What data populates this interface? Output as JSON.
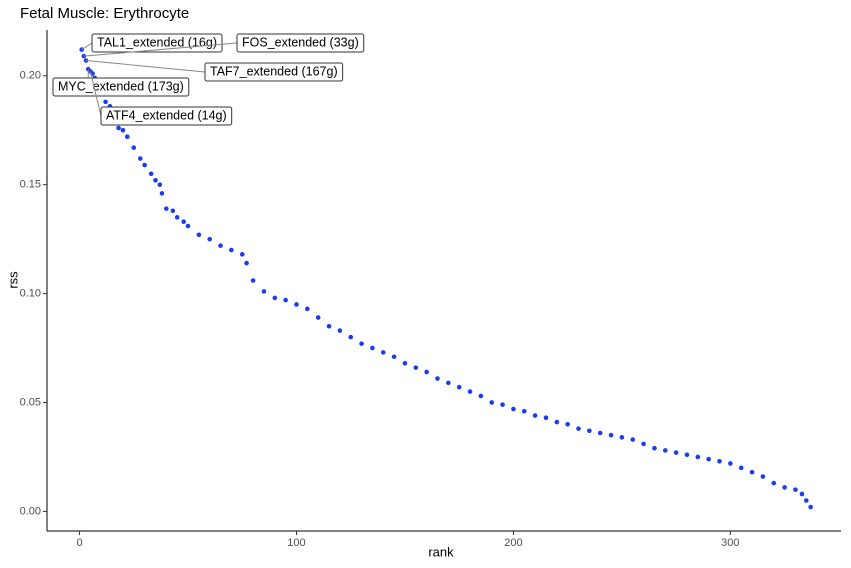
{
  "chart_data": {
    "type": "scatter",
    "title": "Fetal Muscle: Erythrocyte",
    "x_label": "rank",
    "y_label": "rss",
    "color": "#1a3cf0",
    "annotations": [
      "TAL1_extended (16g)",
      "FOS_extended (33g)",
      "TAF7_extended (167g)",
      "MYC_extended (173g)",
      "ATF4_extended (14g)"
    ],
    "x": [
      1,
      2,
      3,
      4,
      5,
      6,
      7,
      8,
      10,
      12,
      14,
      16,
      18,
      20,
      22,
      25,
      28,
      30,
      33,
      35,
      37,
      38,
      40,
      43,
      45,
      48,
      50,
      55,
      60,
      65,
      70,
      75,
      77,
      80,
      85,
      90,
      95,
      100,
      105,
      110,
      115,
      120,
      125,
      130,
      135,
      140,
      145,
      150,
      155,
      160,
      165,
      170,
      175,
      180,
      185,
      190,
      195,
      200,
      205,
      210,
      215,
      220,
      225,
      230,
      235,
      240,
      245,
      250,
      255,
      260,
      265,
      270,
      275,
      280,
      285,
      290,
      295,
      300,
      305,
      310,
      315,
      320,
      325,
      330,
      333,
      335,
      337
    ],
    "values": [
      0.212,
      0.209,
      0.207,
      0.203,
      0.202,
      0.201,
      0.199,
      0.196,
      0.192,
      0.188,
      0.186,
      0.183,
      0.176,
      0.175,
      0.172,
      0.167,
      0.162,
      0.159,
      0.155,
      0.152,
      0.15,
      0.146,
      0.139,
      0.138,
      0.135,
      0.133,
      0.131,
      0.127,
      0.125,
      0.122,
      0.12,
      0.118,
      0.114,
      0.106,
      0.101,
      0.098,
      0.097,
      0.095,
      0.093,
      0.089,
      0.085,
      0.083,
      0.08,
      0.077,
      0.075,
      0.073,
      0.071,
      0.068,
      0.066,
      0.064,
      0.061,
      0.059,
      0.057,
      0.055,
      0.053,
      0.05,
      0.049,
      0.047,
      0.046,
      0.044,
      0.043,
      0.041,
      0.04,
      0.038,
      0.037,
      0.036,
      0.035,
      0.034,
      0.033,
      0.031,
      0.029,
      0.028,
      0.027,
      0.026,
      0.025,
      0.024,
      0.023,
      0.022,
      0.02,
      0.018,
      0.016,
      0.013,
      0.011,
      0.01,
      0.008,
      0.005,
      0.002
    ],
    "xlim": [
      -15,
      351
    ],
    "ylim": [
      -0.009,
      0.221
    ],
    "xticks": [
      0,
      100,
      200,
      300
    ],
    "yticks": [
      {
        "value": 0,
        "label": "0.00"
      },
      {
        "value": 0.05,
        "label": "0.05"
      },
      {
        "value": 0.1,
        "label": "0.10"
      },
      {
        "value": 0.15,
        "label": "0.15"
      },
      {
        "value": 0.2,
        "label": "0.20"
      }
    ]
  }
}
